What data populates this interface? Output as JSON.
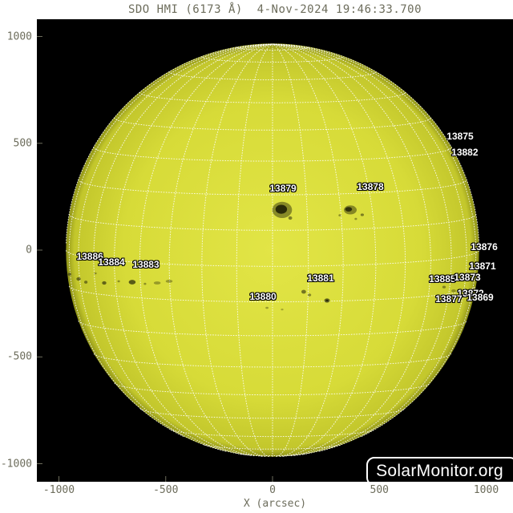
{
  "header": {
    "title": "SDO HMI (6173 Å)  4-Nov-2024 19:46:33.700"
  },
  "watermark": {
    "label": "SolarMonitor.org"
  },
  "axes": {
    "xlabel": "X (arcsec)",
    "text_color": "#6d6d5c"
  },
  "chart_data": {
    "type": "scatter",
    "subtype": "solar-disk-map",
    "title": "SDO HMI (6173 Å)  4-Nov-2024 19:46:33.700",
    "instrument": "SDO HMI",
    "wavelength_angstrom": 6173,
    "datetime": "4-Nov-2024 19:46:33.700",
    "xlabel": "X (arcsec)",
    "x_ticks_arcsec": [
      -1000,
      -500,
      0,
      500,
      1000
    ],
    "y_ticks_arcsec": [
      1000,
      500,
      0,
      -500,
      -1000
    ],
    "xlim": [
      -1100,
      1130
    ],
    "ylim": [
      -1080,
      1080
    ],
    "grid": true,
    "grid_step_deg": 10,
    "solar_radius_arcsec": 967,
    "b0_deg": 4.5,
    "colors": {
      "background": "#000000",
      "disk_center": "#e2e546",
      "disk_mid": "#d7db38",
      "disk_edge": "#c3c72c",
      "disk_limb": "#8f9318",
      "grid": "#ffffff",
      "spot": "#1d1d06",
      "label_text": "#ffffff",
      "label_outline": "#000000"
    },
    "active_regions": [
      {
        "noaa": "13875",
        "x_arcsec": 878,
        "y_arcsec": 533
      },
      {
        "noaa": "13882",
        "x_arcsec": 900,
        "y_arcsec": 458
      },
      {
        "noaa": "13879",
        "x_arcsec": 49,
        "y_arcsec": 289
      },
      {
        "noaa": "13878",
        "x_arcsec": 458,
        "y_arcsec": 296
      },
      {
        "noaa": "13876",
        "x_arcsec": 991,
        "y_arcsec": 15
      },
      {
        "noaa": "13871",
        "x_arcsec": 983,
        "y_arcsec": -75
      },
      {
        "noaa": "13885",
        "x_arcsec": 795,
        "y_arcsec": -135
      },
      {
        "noaa": "13873",
        "x_arcsec": 912,
        "y_arcsec": -128
      },
      {
        "noaa": "13886",
        "x_arcsec": -855,
        "y_arcsec": -30
      },
      {
        "noaa": "13884",
        "x_arcsec": -754,
        "y_arcsec": -56
      },
      {
        "noaa": "13883",
        "x_arcsec": -593,
        "y_arcsec": -68
      },
      {
        "noaa": "13881",
        "x_arcsec": 225,
        "y_arcsec": -131
      },
      {
        "noaa": "13880",
        "x_arcsec": -45,
        "y_arcsec": -218
      },
      {
        "noaa": "13872",
        "x_arcsec": 927,
        "y_arcsec": -203
      },
      {
        "noaa": "13869",
        "x_arcsec": 972,
        "y_arcsec": -221
      },
      {
        "noaa": "13877",
        "x_arcsec": 825,
        "y_arcsec": -229
      }
    ],
    "sunspots": [
      {
        "x": 45,
        "y": 188,
        "rx": 46,
        "ry": 38,
        "o": 0.45
      },
      {
        "x": 41,
        "y": 191,
        "rx": 27,
        "ry": 21,
        "o": 0.88
      },
      {
        "x": 83,
        "y": 150,
        "rx": 9,
        "ry": 8,
        "o": 0.5
      },
      {
        "x": 364,
        "y": 188,
        "rx": 30,
        "ry": 21,
        "o": 0.45
      },
      {
        "x": 356,
        "y": 191,
        "rx": 16,
        "ry": 11,
        "o": 0.82
      },
      {
        "x": 420,
        "y": 165,
        "rx": 8,
        "ry": 6,
        "o": 0.5
      },
      {
        "x": 315,
        "y": 163,
        "rx": 6,
        "ry": 5,
        "o": 0.4
      },
      {
        "x": 390,
        "y": 146,
        "rx": 6,
        "ry": 5,
        "o": 0.4
      },
      {
        "x": 146,
        "y": -195,
        "rx": 11,
        "ry": 9,
        "o": 0.55
      },
      {
        "x": 173,
        "y": -210,
        "rx": 8,
        "ry": 6,
        "o": 0.45
      },
      {
        "x": 255,
        "y": -236,
        "rx": 13,
        "ry": 10,
        "o": 0.6
      },
      {
        "x": 255,
        "y": -236,
        "rx": 6,
        "ry": 5,
        "o": 0.85
      },
      {
        "x": -26,
        "y": -270,
        "rx": 7,
        "ry": 5,
        "o": 0.35
      },
      {
        "x": 45,
        "y": -278,
        "rx": 6,
        "ry": 4,
        "o": 0.3
      },
      {
        "x": -950,
        "y": -113,
        "rx": 8,
        "ry": 7,
        "o": 0.5
      },
      {
        "x": -908,
        "y": -135,
        "rx": 10,
        "ry": 8,
        "o": 0.55
      },
      {
        "x": -874,
        "y": -150,
        "rx": 8,
        "ry": 7,
        "o": 0.5
      },
      {
        "x": -829,
        "y": -109,
        "rx": 6,
        "ry": 5,
        "o": 0.35
      },
      {
        "x": -788,
        "y": -154,
        "rx": 10,
        "ry": 8,
        "o": 0.6
      },
      {
        "x": -720,
        "y": -146,
        "rx": 6,
        "ry": 5,
        "o": 0.4
      },
      {
        "x": -657,
        "y": -150,
        "rx": 16,
        "ry": 11,
        "o": 0.68
      },
      {
        "x": -597,
        "y": -158,
        "rx": 6,
        "ry": 5,
        "o": 0.4
      },
      {
        "x": -540,
        "y": -154,
        "rx": 16,
        "ry": 7,
        "o": 0.35
      },
      {
        "x": -484,
        "y": -146,
        "rx": 16,
        "ry": 7,
        "o": 0.35
      },
      {
        "x": 803,
        "y": -173,
        "rx": 8,
        "ry": 6,
        "o": 0.45
      },
      {
        "x": 848,
        "y": -191,
        "rx": 11,
        "ry": 7,
        "o": 0.35
      },
      {
        "x": 769,
        "y": -146,
        "rx": 6,
        "ry": 5,
        "o": 0.3
      }
    ]
  }
}
